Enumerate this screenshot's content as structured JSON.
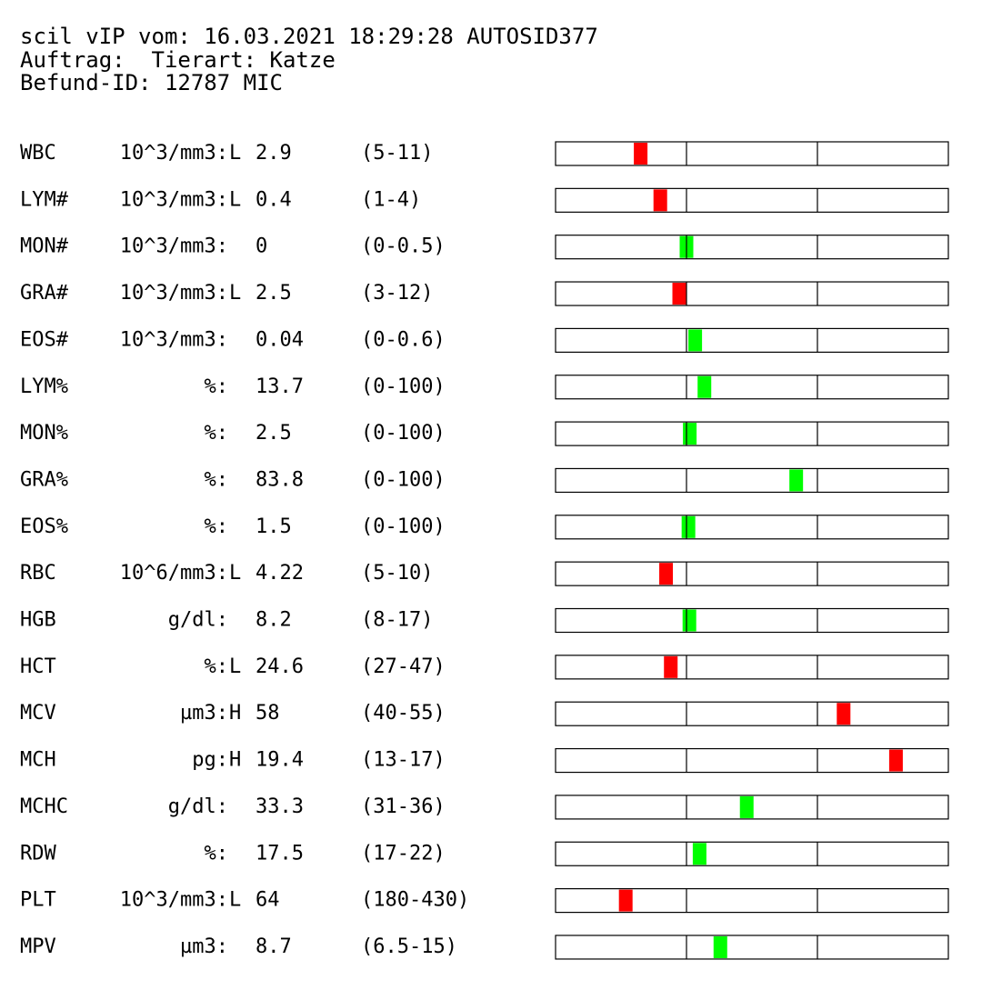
{
  "header": {
    "lines": [
      "scil vIP vom: 16.03.2021 18:29:28 AUTOSID377",
      "Auftrag:  Tierart: Katze",
      "Befund-ID: 12787 MIC"
    ]
  },
  "flag_colors": {
    "flagged": "#ff0000",
    "normal": "#00ff00"
  },
  "rows": [
    {
      "name": "WBC",
      "unit": "10^3/mm3:",
      "flag": "L",
      "value": 2.9,
      "range": {
        "label": "(5-11)",
        "low": 5,
        "high": 11
      }
    },
    {
      "name": "LYM#",
      "unit": "10^3/mm3:",
      "flag": "L",
      "value": 0.4,
      "range": {
        "label": "(1-4)",
        "low": 1,
        "high": 4
      }
    },
    {
      "name": "MON#",
      "unit": "10^3/mm3:",
      "value": 0,
      "range": {
        "label": "(0-0.5)",
        "low": 0,
        "high": 0.5
      }
    },
    {
      "name": "GRA#",
      "unit": "10^3/mm3:",
      "flag": "L",
      "value": 2.5,
      "range": {
        "label": "(3-12)",
        "low": 3,
        "high": 12
      }
    },
    {
      "name": "EOS#",
      "unit": "10^3/mm3:",
      "value": 0.04,
      "range": {
        "label": "(0-0.6)",
        "low": 0,
        "high": 0.6
      }
    },
    {
      "name": "LYM%",
      "unit": "%:",
      "value": 13.7,
      "range": {
        "label": "(0-100)",
        "low": 0,
        "high": 100
      }
    },
    {
      "name": "MON%",
      "unit": "%:",
      "value": 2.5,
      "range": {
        "label": "(0-100)",
        "low": 0,
        "high": 100
      }
    },
    {
      "name": "GRA%",
      "unit": "%:",
      "value": 83.8,
      "range": {
        "label": "(0-100)",
        "low": 0,
        "high": 100
      }
    },
    {
      "name": "EOS%",
      "unit": "%:",
      "value": 1.5,
      "range": {
        "label": "(0-100)",
        "low": 0,
        "high": 100
      }
    },
    {
      "name": "RBC",
      "unit": "10^6/mm3:",
      "flag": "L",
      "value": 4.22,
      "range": {
        "label": "(5-10)",
        "low": 5,
        "high": 10
      }
    },
    {
      "name": "HGB",
      "unit": "g/dl:",
      "value": 8.2,
      "range": {
        "label": "(8-17)",
        "low": 8,
        "high": 17
      }
    },
    {
      "name": "HCT",
      "unit": "%:",
      "flag": "L",
      "value": 24.6,
      "range": {
        "label": "(27-47)",
        "low": 27,
        "high": 47
      }
    },
    {
      "name": "MCV",
      "unit": "µm3:",
      "flag": "H",
      "value": 58,
      "range": {
        "label": "(40-55)",
        "low": 40,
        "high": 55
      }
    },
    {
      "name": "MCH",
      "unit": "pg:",
      "flag": "H",
      "value": 19.4,
      "range": {
        "label": "(13-17)",
        "low": 13,
        "high": 17
      }
    },
    {
      "name": "MCHC",
      "unit": "g/dl:",
      "value": 33.3,
      "range": {
        "label": "(31-36)",
        "low": 31,
        "high": 36
      }
    },
    {
      "name": "RDW",
      "unit": "%:",
      "value": 17.5,
      "range": {
        "label": "(17-22)",
        "low": 17,
        "high": 22
      }
    },
    {
      "name": "PLT",
      "unit": "10^3/mm3:",
      "flag": "L",
      "value": 64,
      "range": {
        "label": "(180-430)",
        "low": 180,
        "high": 430
      }
    },
    {
      "name": "MPV",
      "unit": "µm3:",
      "value": 8.7,
      "range": {
        "label": "(6.5-15)",
        "low": 6.5,
        "high": 15
      }
    }
  ]
}
